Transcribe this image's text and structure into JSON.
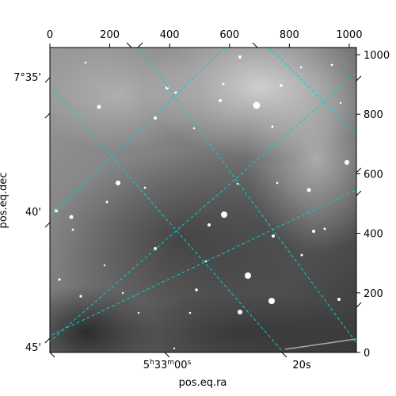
{
  "chart_data": {
    "type": "image",
    "xlabel": "pos.eq.ra",
    "ylabel": "pos.eq.dec",
    "pixel_axes": {
      "x": {
        "range": [
          0,
          1024
        ],
        "ticks": [
          0,
          200,
          400,
          600,
          800,
          1000
        ],
        "tick_labels": [
          "0",
          "200",
          "400",
          "600",
          "800",
          "1000"
        ]
      },
      "y": {
        "range": [
          0,
          1024
        ],
        "ticks": [
          0,
          200,
          400,
          600,
          800,
          1000
        ],
        "tick_labels": [
          "0",
          "200",
          "400",
          "600",
          "800",
          "1000"
        ]
      }
    },
    "world_ticks": {
      "ra": [
        {
          "label": "5h33m00s"
        },
        {
          "label": "20s"
        }
      ],
      "dec": [
        {
          "label": "7°35'"
        },
        {
          "label": "40'"
        },
        {
          "label": "45'"
        }
      ]
    },
    "grid": true,
    "grid_color": "#00d0d0",
    "colormap": "gray"
  }
}
